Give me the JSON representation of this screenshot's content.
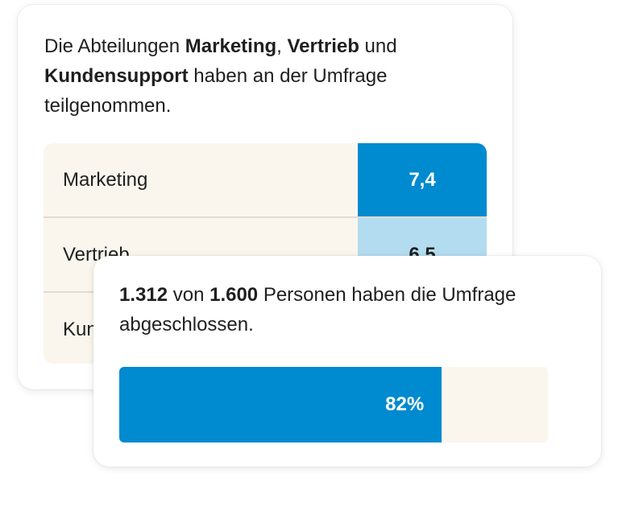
{
  "intro": {
    "prefix": "Die Abteilungen ",
    "dept1": "Marketing",
    "sep1": ", ",
    "dept2": "Vertrieb",
    "sep2": " und ",
    "dept3": "Kundensupport",
    "suffix": " haben an der Umfrage teilgenommen."
  },
  "scores": [
    {
      "label": "Marketing",
      "value": "7,4",
      "bg": "#008acf",
      "fg": "#ffffff"
    },
    {
      "label": "Vertrieb",
      "value": "6,5",
      "bg": "#b3dcf0",
      "fg": "#1f1f1f"
    },
    {
      "label": "Kundensupport",
      "value": "",
      "bg": "#faf6ee",
      "fg": "#1f1f1f"
    }
  ],
  "summary": {
    "completed": "1.312",
    "connector": " von ",
    "total": "1.600",
    "suffix": " Personen haben die Umfrage abgeschlossen."
  },
  "progress": {
    "percent": 82,
    "label": "82%",
    "fill_color": "#008acf",
    "track_color": "#faf6ee"
  }
}
